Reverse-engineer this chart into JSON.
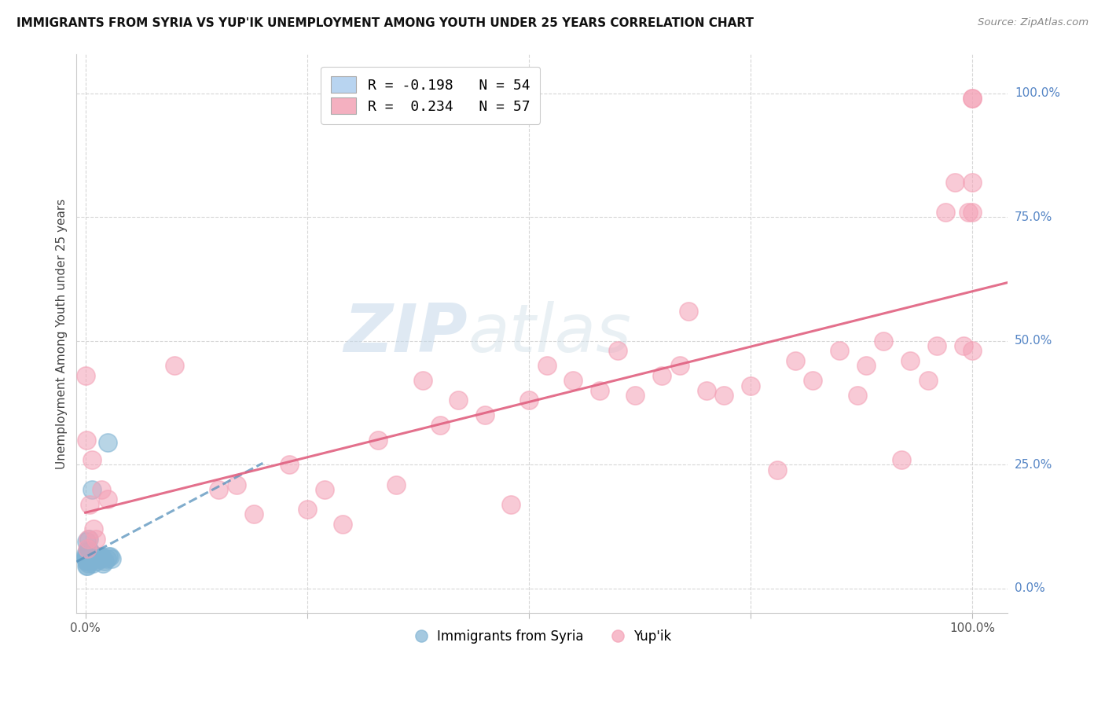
{
  "title": "IMMIGRANTS FROM SYRIA VS YUP'IK UNEMPLOYMENT AMONG YOUTH UNDER 25 YEARS CORRELATION CHART",
  "source": "Source: ZipAtlas.com",
  "ylabel": "Unemployment Among Youth under 25 years",
  "ytick_labels": [
    "0.0%",
    "25.0%",
    "50.0%",
    "75.0%",
    "100.0%"
  ],
  "blue_color": "#7fb3d3",
  "pink_color": "#f4a0b5",
  "blue_line_color": "#5590bb",
  "pink_line_color": "#e06080",
  "background_color": "#ffffff",
  "grid_color": "#cccccc",
  "watermark_zip": "ZIP",
  "watermark_atlas": "atlas",
  "blue_R": -0.198,
  "blue_N": 54,
  "pink_R": 0.234,
  "pink_N": 57,
  "blue_scatter_x": [
    0.0,
    0.0,
    0.0,
    0.001,
    0.001,
    0.001,
    0.001,
    0.001,
    0.002,
    0.002,
    0.002,
    0.002,
    0.002,
    0.002,
    0.003,
    0.003,
    0.003,
    0.003,
    0.003,
    0.003,
    0.003,
    0.003,
    0.003,
    0.004,
    0.004,
    0.004,
    0.004,
    0.004,
    0.004,
    0.005,
    0.005,
    0.005,
    0.006,
    0.006,
    0.006,
    0.007,
    0.008,
    0.008,
    0.009,
    0.01,
    0.01,
    0.011,
    0.012,
    0.013,
    0.015,
    0.017,
    0.018,
    0.02,
    0.022,
    0.024,
    0.025,
    0.026,
    0.028,
    0.03
  ],
  "blue_scatter_y": [
    0.06,
    0.065,
    0.07,
    0.045,
    0.055,
    0.06,
    0.065,
    0.095,
    0.045,
    0.055,
    0.06,
    0.065,
    0.07,
    0.075,
    0.05,
    0.055,
    0.06,
    0.065,
    0.065,
    0.07,
    0.07,
    0.075,
    0.08,
    0.055,
    0.06,
    0.065,
    0.07,
    0.075,
    0.1,
    0.06,
    0.065,
    0.075,
    0.06,
    0.065,
    0.075,
    0.2,
    0.05,
    0.065,
    0.065,
    0.06,
    0.065,
    0.06,
    0.065,
    0.055,
    0.065,
    0.06,
    0.065,
    0.05,
    0.055,
    0.06,
    0.295,
    0.065,
    0.065,
    0.06
  ],
  "pink_scatter_x": [
    0.0,
    0.001,
    0.002,
    0.003,
    0.005,
    0.007,
    0.009,
    0.012,
    0.018,
    0.025,
    0.1,
    0.15,
    0.17,
    0.19,
    0.23,
    0.25,
    0.27,
    0.29,
    0.33,
    0.35,
    0.38,
    0.4,
    0.42,
    0.45,
    0.48,
    0.5,
    0.52,
    0.55,
    0.58,
    0.6,
    0.62,
    0.65,
    0.67,
    0.68,
    0.7,
    0.72,
    0.75,
    0.78,
    0.8,
    0.82,
    0.85,
    0.87,
    0.88,
    0.9,
    0.92,
    0.93,
    0.95,
    0.96,
    0.97,
    0.98,
    0.99,
    0.995,
    1.0,
    1.0,
    1.0,
    1.0,
    1.0
  ],
  "pink_scatter_y": [
    0.43,
    0.3,
    0.08,
    0.1,
    0.17,
    0.26,
    0.12,
    0.1,
    0.2,
    0.18,
    0.45,
    0.2,
    0.21,
    0.15,
    0.25,
    0.16,
    0.2,
    0.13,
    0.3,
    0.21,
    0.42,
    0.33,
    0.38,
    0.35,
    0.17,
    0.38,
    0.45,
    0.42,
    0.4,
    0.48,
    0.39,
    0.43,
    0.45,
    0.56,
    0.4,
    0.39,
    0.41,
    0.24,
    0.46,
    0.42,
    0.48,
    0.39,
    0.45,
    0.5,
    0.26,
    0.46,
    0.42,
    0.49,
    0.76,
    0.82,
    0.49,
    0.76,
    0.48,
    0.76,
    0.82,
    0.99,
    0.99
  ]
}
